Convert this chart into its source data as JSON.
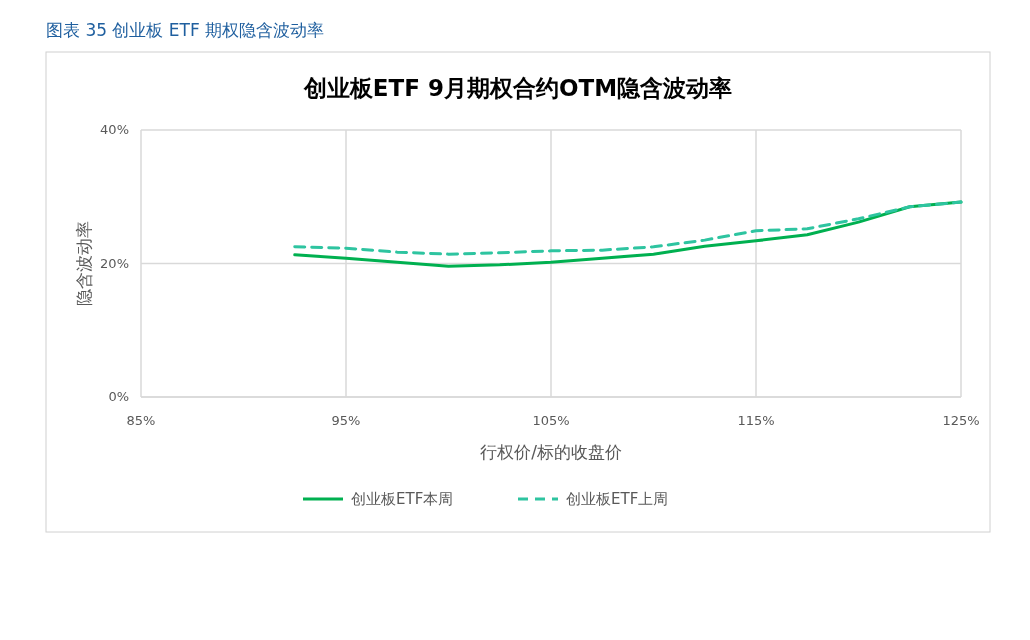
{
  "chart_data": {
    "type": "line",
    "title": "创业板ETF 9月期权合约OTM隐含波动率",
    "annotations": [
      "图表 35 创业板 ETF 期权隐含波动率"
    ],
    "xlabel": "行权价/标的收盘价",
    "ylabel": "隐含波动率",
    "x": [
      92.5,
      95,
      97.5,
      100,
      102.5,
      105,
      107.5,
      110,
      112.5,
      115,
      117.5,
      120,
      122.5,
      125
    ],
    "series": [
      {
        "name": "创业板ETF本周",
        "color": "#00b050",
        "line_style": "solid",
        "values": [
          21.3,
          20.8,
          20.2,
          19.6,
          19.8,
          20.2,
          20.8,
          21.4,
          22.6,
          23.4,
          24.3,
          26.2,
          28.5,
          29.2
        ]
      },
      {
        "name": "创业板ETF上周",
        "color": "#2ec4a0",
        "line_style": "dashed",
        "values": [
          22.5,
          22.3,
          21.7,
          21.4,
          21.6,
          21.9,
          22.0,
          22.5,
          23.5,
          24.9,
          25.2,
          26.7,
          28.5,
          29.2
        ]
      }
    ],
    "xlim": [
      85,
      125
    ],
    "xticks": [
      {
        "value": 85,
        "label": "85%"
      },
      {
        "value": 95,
        "label": "95%"
      },
      {
        "value": 105,
        "label": "105%"
      },
      {
        "value": 115,
        "label": "115%"
      },
      {
        "value": 125,
        "label": "125%"
      }
    ],
    "ylim": [
      0,
      40
    ],
    "yticks": [
      {
        "value": 0,
        "label": "0%"
      },
      {
        "value": 20,
        "label": "20%"
      },
      {
        "value": 40,
        "label": "40%"
      }
    ],
    "grid": true,
    "legend": "bottom",
    "marker": "none"
  }
}
